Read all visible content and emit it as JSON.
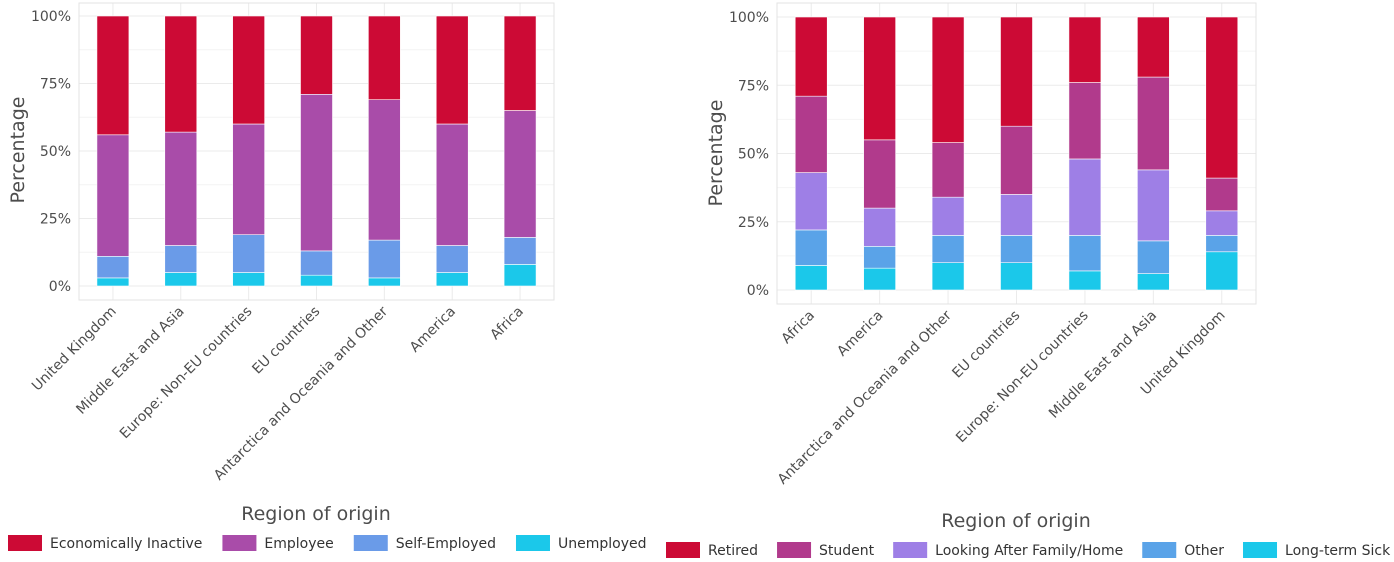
{
  "chart_data": [
    {
      "type": "bar",
      "stacked": true,
      "categories": [
        "United Kingdom",
        "Middle East and Asia",
        "Europe: Non-EU countries",
        "EU countries",
        "Antarctica and Oceania and Other",
        "America",
        "Africa"
      ],
      "series": [
        {
          "name": "Unemployed",
          "color": "#1bc8ea",
          "values": [
            3,
            5,
            5,
            4,
            3,
            5,
            8
          ]
        },
        {
          "name": "Self-Employed",
          "color": "#6a9be8",
          "values": [
            8,
            10,
            14,
            9,
            14,
            10,
            10
          ]
        },
        {
          "name": "Employee",
          "color": "#a94ca9",
          "values": [
            45,
            42,
            41,
            58,
            52,
            45,
            47
          ]
        },
        {
          "name": "Economically Inactive",
          "color": "#cc0a35",
          "values": [
            44,
            43,
            40,
            29,
            31,
            40,
            35
          ]
        }
      ],
      "legend_order": [
        "Economically Inactive",
        "Employee",
        "Self-Employed",
        "Unemployed"
      ],
      "yticks": [
        "0%",
        "25%",
        "50%",
        "75%",
        "100%"
      ],
      "ylim": [
        0,
        100
      ],
      "xlabel": "Region of origin",
      "ylabel": "Percentage",
      "legend_position": "bottom",
      "grid": true
    },
    {
      "type": "bar",
      "stacked": true,
      "categories": [
        "Africa",
        "America",
        "Antarctica and Oceania and Other",
        "EU countries",
        "Europe: Non-EU countries",
        "Middle East and Asia",
        "United Kingdom"
      ],
      "series": [
        {
          "name": "Long-term Sick or Disabled",
          "color": "#1bc8ea",
          "values": [
            9,
            8,
            10,
            10,
            7,
            6,
            14
          ]
        },
        {
          "name": "Other",
          "color": "#5aa3e8",
          "values": [
            13,
            8,
            10,
            10,
            13,
            12,
            6
          ]
        },
        {
          "name": "Looking After Family/Home",
          "color": "#9e7fe6",
          "values": [
            21,
            14,
            14,
            15,
            28,
            26,
            9
          ]
        },
        {
          "name": "Student",
          "color": "#b13a8c",
          "values": [
            28,
            25,
            20,
            25,
            28,
            34,
            12
          ]
        },
        {
          "name": "Retired",
          "color": "#cc0a35",
          "values": [
            29,
            45,
            46,
            40,
            24,
            22,
            59
          ]
        }
      ],
      "legend_order": [
        "Retired",
        "Student",
        "Looking After Family/Home",
        "Other",
        "Long-term Sick or Disabled"
      ],
      "yticks": [
        "0%",
        "25%",
        "50%",
        "75%",
        "100%"
      ],
      "ylim": [
        0,
        100
      ],
      "xlabel": "Region of origin",
      "ylabel": "Percentage",
      "legend_position": "bottom",
      "grid": true
    }
  ]
}
